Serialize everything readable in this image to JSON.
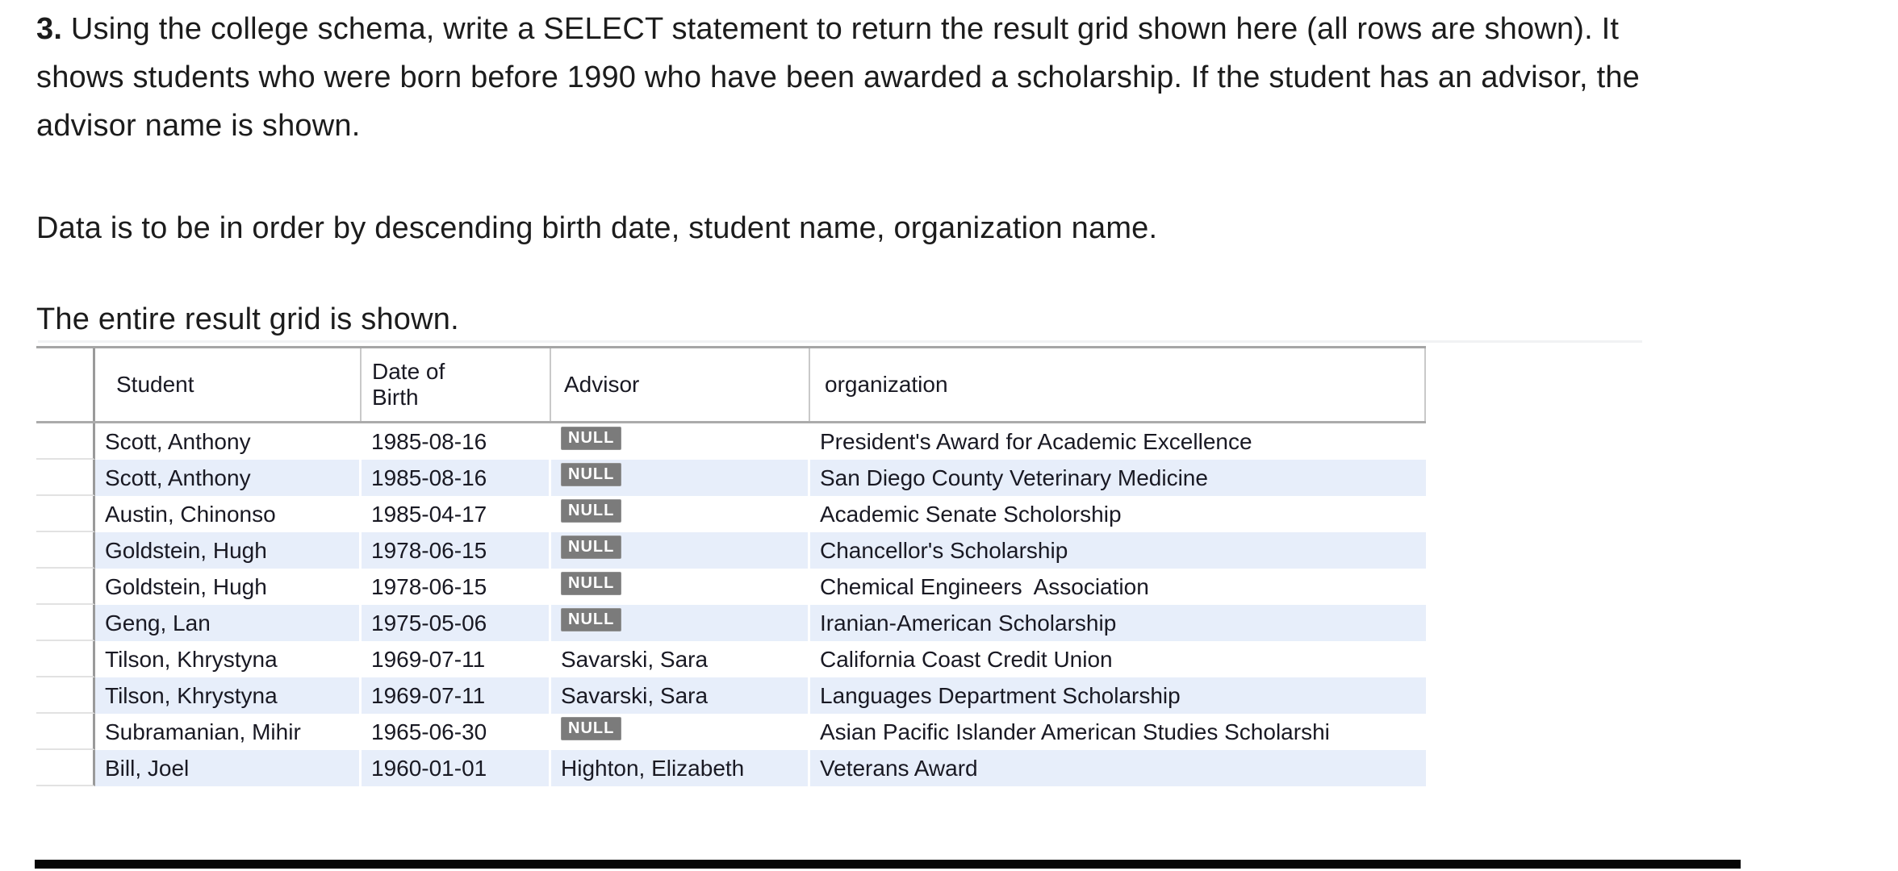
{
  "question": {
    "number": "3.",
    "body": " Using the college schema, write a SELECT statement to return the result grid shown here (all rows are shown). It shows students who were born before 1990 who have been awarded a scholarship. If the student has an advisor, the advisor name is shown.",
    "order_note": "Data is to be in order by descending birth date, student name, organization name.",
    "grid_note": "The entire result grid is shown."
  },
  "result_grid": {
    "columns": [
      "Student",
      "Date of Birth",
      "Advisor",
      "organization"
    ],
    "null_label": "NULL",
    "rows": [
      {
        "student": "Scott, Anthony",
        "date_of_birth": "1985-08-16",
        "advisor": null,
        "organization": "President's Award for Academic Excellence"
      },
      {
        "student": "Scott, Anthony",
        "date_of_birth": "1985-08-16",
        "advisor": null,
        "organization": "San Diego County Veterinary Medicine"
      },
      {
        "student": "Austin, Chinonso",
        "date_of_birth": "1985-04-17",
        "advisor": null,
        "organization": "Academic Senate Scholorship"
      },
      {
        "student": "Goldstein, Hugh",
        "date_of_birth": "1978-06-15",
        "advisor": null,
        "organization": "Chancellor's Scholarship"
      },
      {
        "student": "Goldstein, Hugh",
        "date_of_birth": "1978-06-15",
        "advisor": null,
        "organization": "Chemical Engineers  Association"
      },
      {
        "student": "Geng, Lan",
        "date_of_birth": "1975-05-06",
        "advisor": null,
        "organization": "Iranian-American Scholarship"
      },
      {
        "student": "Tilson, Khrystyna",
        "date_of_birth": "1969-07-11",
        "advisor": "Savarski, Sara",
        "organization": "California Coast Credit Union"
      },
      {
        "student": "Tilson, Khrystyna",
        "date_of_birth": "1969-07-11",
        "advisor": "Savarski, Sara",
        "organization": "Languages Department Scholarship"
      },
      {
        "student": "Subramanian, Mihir",
        "date_of_birth": "1965-06-30",
        "advisor": null,
        "organization": "Asian Pacific Islander American Studies Scholarshi"
      },
      {
        "student": "Bill, Joel",
        "date_of_birth": "1960-01-01",
        "advisor": "Highton, Elizabeth",
        "organization": "Veterans Award"
      }
    ]
  },
  "colors": {
    "stripe_blue": "#e7eefa",
    "null_badge_grey": "#7b7b7b",
    "grid_border_grey": "#9a9a9a",
    "bottom_rule_black": "#060606"
  }
}
